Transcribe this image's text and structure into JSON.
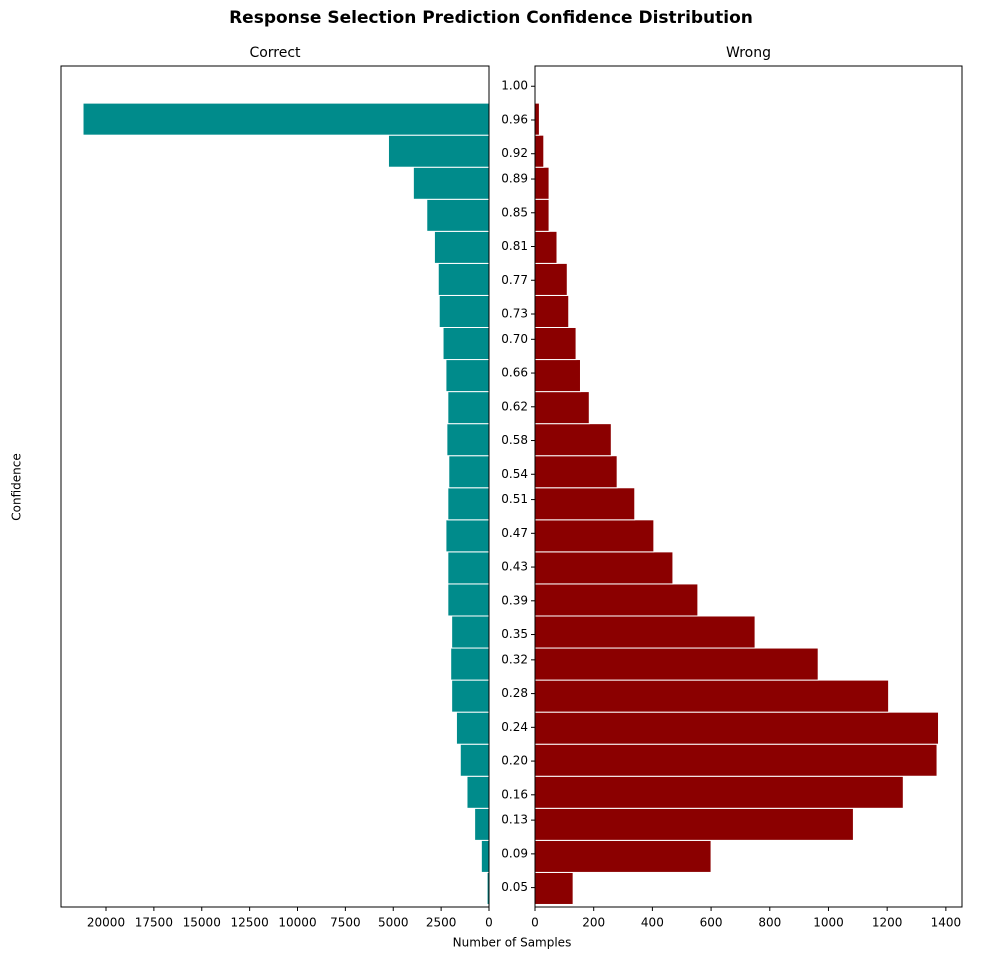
{
  "title": "Response Selection Prediction Confidence Distribution",
  "xlabel": "Number of Samples",
  "ylabel": "Confidence",
  "chart_data": [
    {
      "type": "histogram",
      "orientation": "horizontal",
      "title": "Correct",
      "color": "#008b8b",
      "bins": [
        0.03,
        0.068,
        0.106,
        0.144,
        0.182,
        0.22,
        0.258,
        0.296,
        0.334,
        0.372,
        0.41,
        0.448,
        0.486,
        0.524,
        0.562,
        0.6,
        0.638,
        0.676,
        0.714,
        0.752,
        0.79,
        0.828,
        0.866,
        0.904,
        0.942,
        0.98
      ],
      "values": [
        100,
        400,
        750,
        1150,
        1500,
        1700,
        1950,
        2000,
        1950,
        2150,
        2150,
        2250,
        2150,
        2100,
        2200,
        2150,
        2250,
        2400,
        2600,
        2650,
        2850,
        3250,
        3950,
        5250,
        21200
      ],
      "xlim": [
        22350,
        0
      ],
      "xticks": [
        20000,
        17500,
        15000,
        12500,
        10000,
        7500,
        5000,
        2500,
        0
      ],
      "ylim": [
        0.027,
        1.024
      ]
    },
    {
      "type": "histogram",
      "orientation": "horizontal",
      "title": "Wrong",
      "color": "#8b0000",
      "bins": [
        0.03,
        0.068,
        0.106,
        0.144,
        0.182,
        0.22,
        0.258,
        0.296,
        0.334,
        0.372,
        0.41,
        0.448,
        0.486,
        0.524,
        0.562,
        0.6,
        0.638,
        0.676,
        0.714,
        0.752,
        0.79,
        0.828,
        0.866,
        0.904,
        0.942,
        0.98
      ],
      "values": [
        130,
        600,
        1085,
        1255,
        1370,
        1375,
        1205,
        965,
        750,
        555,
        470,
        405,
        340,
        280,
        260,
        185,
        155,
        140,
        115,
        110,
        75,
        48,
        48,
        30,
        15
      ],
      "xlim": [
        0,
        1455
      ],
      "xticks": [
        0,
        200,
        400,
        600,
        800,
        1000,
        1200,
        1400
      ],
      "ylim": [
        0.027,
        1.024
      ],
      "yticks": [
        0.05,
        0.09,
        0.13,
        0.16,
        {
          "value": 0.2,
          "label": "0.20"
        },
        0.24,
        0.28,
        0.32,
        0.35,
        0.39,
        0.43,
        0.47,
        0.51,
        0.54,
        0.58,
        0.62,
        0.66,
        {
          "value": 0.7,
          "label": "0.70"
        },
        0.73,
        0.77,
        0.81,
        0.85,
        0.89,
        0.92,
        0.96,
        {
          "value": 1.0,
          "label": "1.00"
        }
      ]
    }
  ]
}
